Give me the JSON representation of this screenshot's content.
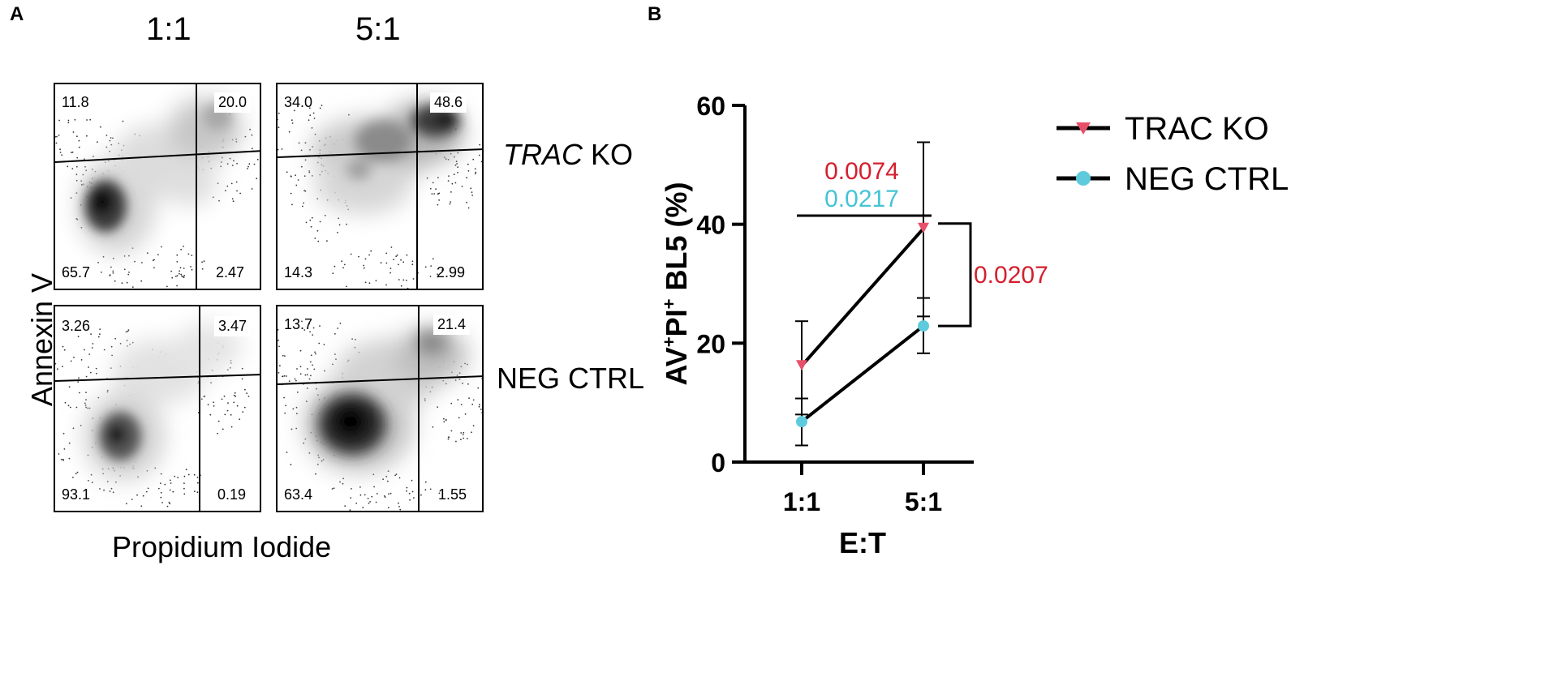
{
  "panel_a": {
    "label": "A",
    "columns": [
      "1:1",
      "5:1"
    ],
    "rows": [
      {
        "label_italic": "TRAC",
        "label_rest": " KO"
      },
      {
        "label_italic": "",
        "label_rest": "NEG CTRL"
      }
    ],
    "y_axis_title": "Annexin V",
    "x_axis_title": "Propidium Iodide",
    "plots": [
      {
        "id": "trac-1-1",
        "tl": "11.8",
        "tr": "20.0",
        "bl": "65.7",
        "br": "2.47"
      },
      {
        "id": "trac-5-1",
        "tl": "34.0",
        "tr": "48.6",
        "bl": "14.3",
        "br": "2.99"
      },
      {
        "id": "neg-1-1",
        "tl": "3.26",
        "tr": "3.47",
        "bl": "93.1",
        "br": "0.19"
      },
      {
        "id": "neg-5-1",
        "tl": "13.7",
        "tr": "21.4",
        "bl": "63.4",
        "br": "1.55"
      }
    ]
  },
  "panel_b": {
    "label": "B",
    "stats": {
      "trac_p": "0.0074",
      "neg_p": "0.0217",
      "between_p": "0.0207"
    }
  },
  "colors": {
    "trac": "#e8506a",
    "neg": "#5ecbdc",
    "stat_red": "#d41f2e",
    "stat_cyan": "#43c4d4"
  },
  "chart_data": {
    "type": "line",
    "title": "",
    "xlabel": "E:T",
    "ylabel_parts": [
      "AV",
      "+",
      "PI",
      "+",
      " BL5 (%)"
    ],
    "ylabel": "AV+PI+ BL5 (%)",
    "categories": [
      "1:1",
      "5:1"
    ],
    "ylim": [
      0,
      60
    ],
    "yticks": [
      0,
      20,
      40,
      60
    ],
    "series": [
      {
        "name": "TRAC KO",
        "values": [
          16.2,
          39.3
        ],
        "err_low": [
          8.0,
          24.5
        ],
        "err_high": [
          23.7,
          53.8
        ],
        "marker": "triangle-down",
        "color_key": "trac"
      },
      {
        "name": "NEG CTRL",
        "values": [
          6.8,
          22.9
        ],
        "err_low": [
          2.8,
          18.3
        ],
        "err_high": [
          10.7,
          27.6
        ],
        "marker": "circle",
        "color_key": "neg"
      }
    ],
    "legend_position": "right"
  }
}
